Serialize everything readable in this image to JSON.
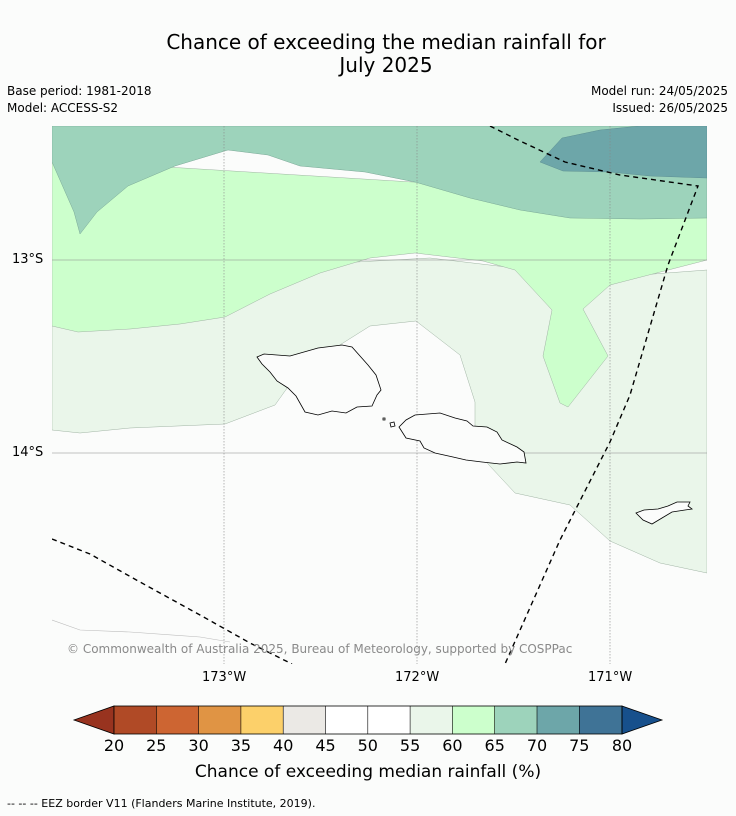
{
  "title_line1": "Chance of exceeding the median rainfall for",
  "title_line2": "July 2025",
  "base_period": "Base period: 1981-2018",
  "model": "Model: ACCESS-S2",
  "model_run": "Model run: 24/05/2025",
  "issued": "Issued: 26/05/2025",
  "copyright": "© Commonwealth of Australia 2025, Bureau of Meteorology, supported by COSPPac",
  "lat_labels": [
    "13°S",
    "14°S"
  ],
  "lon_labels": [
    "173°W",
    "172°W",
    "171°W"
  ],
  "colorbar": {
    "label": "Chance of exceeding median rainfall (%)",
    "ticks": [
      "20",
      "25",
      "30",
      "35",
      "40",
      "45",
      "50",
      "55",
      "60",
      "65",
      "70",
      "75",
      "80"
    ],
    "colors": [
      "#b04a26",
      "#cd6532",
      "#e09444",
      "#fcd06a",
      "#ebe9e5",
      "#ffffff",
      "#ffffff",
      "#eaf6ea",
      "#ccffcc",
      "#9dd3bb",
      "#6da6a9",
      "#3f7396"
    ],
    "under_color": "#98331f",
    "over_color": "#17508c"
  },
  "footer": "--  --  -- EEZ border V11 (Flanders Marine Institute, 2019)."
}
